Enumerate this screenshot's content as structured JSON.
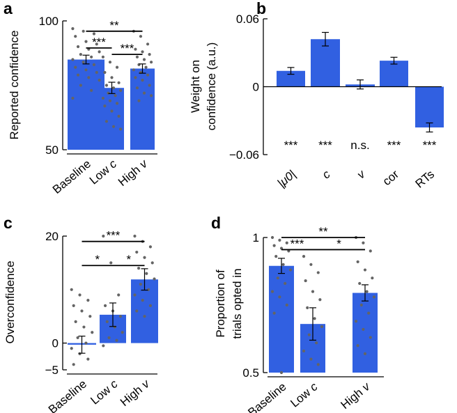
{
  "colors": {
    "bar": "#3160e1",
    "point": "#646464",
    "axis": "#000000"
  },
  "chart_data": [
    {
      "panel": "a",
      "type": "bar",
      "categories": [
        "Baseline",
        "Low c",
        "High v"
      ],
      "category_tex": [
        {
          "t": "Baseline",
          "i": false
        }
      ],
      "values": [
        85,
        74,
        81.5
      ],
      "errors": [
        1.7,
        2.2,
        1.8
      ],
      "ylabel": "Reported confidence",
      "ylim": [
        50,
        100
      ],
      "yticks": [
        50,
        100
      ],
      "ytick_labels": [
        "50",
        "100"
      ],
      "points": [
        [
          97,
          96,
          95,
          94,
          92,
          91,
          90,
          89,
          88,
          87,
          86,
          85,
          84,
          83,
          82,
          81,
          80,
          79,
          78,
          77,
          75,
          73,
          70
        ],
        [
          86,
          84,
          82,
          80,
          78,
          76,
          75,
          74,
          73,
          72,
          71,
          70,
          69,
          68,
          67,
          65,
          63,
          61,
          59,
          58
        ],
        [
          96,
          94,
          91,
          89,
          88,
          87,
          86,
          85,
          84,
          83,
          82,
          81,
          80,
          79,
          78,
          77,
          75,
          74,
          72,
          71,
          69
        ]
      ],
      "comparisons": [
        {
          "from": 0,
          "to": 2,
          "label": "**",
          "y": 96
        },
        {
          "from": 0,
          "to": 1,
          "label": "***",
          "y": 89.5
        },
        {
          "from": 1,
          "to": 2,
          "label": "***",
          "y": 87
        }
      ]
    },
    {
      "panel": "b",
      "type": "bar",
      "categories": [
        "|μ0|",
        "c",
        "v",
        "cor",
        "RTs"
      ],
      "values": [
        0.014,
        0.042,
        0.002,
        0.023,
        -0.036
      ],
      "errors": [
        0.003,
        0.006,
        0.004,
        0.003,
        0.004
      ],
      "ylabel": "Weight on confidence (a.u.)",
      "ylabel_lines": [
        "Weight on",
        "confidence (a.u.)"
      ],
      "ylim": [
        -0.06,
        0.06
      ],
      "yticks": [
        -0.06,
        0,
        0.06
      ],
      "ytick_labels": [
        "−0.06",
        "0",
        "0.06"
      ],
      "significance": [
        "***",
        "***",
        "n.s.",
        "***",
        "***"
      ]
    },
    {
      "panel": "c",
      "type": "bar",
      "categories": [
        "Baseline",
        "Low c",
        "High v"
      ],
      "values": [
        -0.3,
        5.3,
        11.9
      ],
      "errors": [
        1.6,
        2.2,
        2.0
      ],
      "ylabel": "Overconfidence",
      "ylim": [
        -5,
        20
      ],
      "yticks": [
        -5,
        0,
        20
      ],
      "ytick_labels": [
        "−5",
        "0",
        "20"
      ],
      "points": [
        [
          10,
          9,
          8,
          7,
          6,
          5,
          4,
          3,
          2,
          1,
          0,
          -1,
          -2,
          -3,
          -4
        ],
        [
          20,
          15,
          9,
          7,
          6,
          5,
          4,
          3,
          2,
          1,
          0.5,
          -0.5
        ],
        [
          20,
          19,
          18,
          17,
          16,
          15,
          14,
          13,
          12,
          11,
          10,
          9,
          8,
          7,
          6,
          5
        ]
      ],
      "comparisons": [
        {
          "from": 0,
          "to": 2,
          "label": "***",
          "y": 19
        },
        {
          "from": 0,
          "to": 1,
          "label": "*",
          "y": 14.5
        },
        {
          "from": 1,
          "to": 2,
          "label": "*",
          "y": 14.5
        }
      ]
    },
    {
      "panel": "d",
      "type": "bar",
      "categories": [
        "Baseline",
        "Low c",
        "High v"
      ],
      "values": [
        0.895,
        0.68,
        0.795
      ],
      "errors": [
        0.028,
        0.06,
        0.03
      ],
      "ylabel": "Proportion of trials opted in",
      "ylabel_lines": [
        "Proportion of",
        "trials opted in"
      ],
      "ylim": [
        0.5,
        1
      ],
      "yticks": [
        0.5,
        1
      ],
      "ytick_labels": [
        "0.5",
        "1"
      ],
      "points": [
        [
          1.0,
          0.99,
          0.98,
          0.97,
          0.96,
          0.95,
          0.93,
          0.9,
          0.88,
          0.85,
          0.83,
          0.8,
          0.78,
          0.75,
          0.72,
          0.5
        ],
        [
          0.93,
          0.9,
          0.87,
          0.84,
          0.8,
          0.77,
          0.74,
          0.7,
          0.67,
          0.64,
          0.61,
          0.58,
          0.55,
          0.53
        ],
        [
          1.0,
          0.98,
          0.95,
          0.91,
          0.88,
          0.85,
          0.83,
          0.8,
          0.78,
          0.75,
          0.72,
          0.69,
          0.66,
          0.63,
          0.6,
          0.57
        ]
      ],
      "comparisons": [
        {
          "from": 0,
          "to": 2,
          "label": "**",
          "y": 1.0
        },
        {
          "from": 0,
          "to": 1,
          "label": "***",
          "y": 0.955
        },
        {
          "from": 1,
          "to": 2,
          "label": "*",
          "y": 0.955
        }
      ]
    }
  ]
}
